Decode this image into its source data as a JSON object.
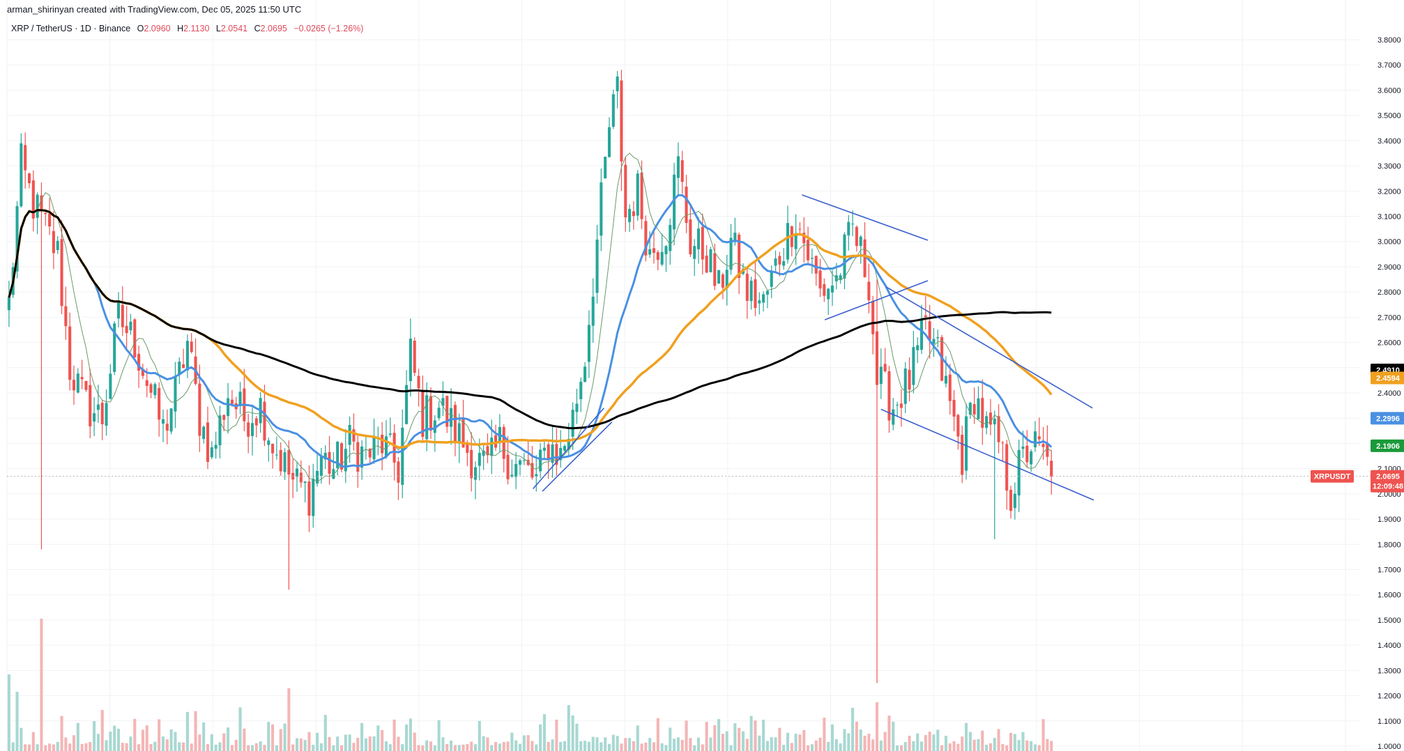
{
  "attribution": "arman_shirinyan created with TradingView.com, Dec 05, 2025 11:50 UTC",
  "legend": {
    "symbol": "XRP / TetherUS · 1D · Binance",
    "o_label": "O",
    "o_value": "2.0960",
    "h_label": "H",
    "h_value": "2.1130",
    "l_label": "L",
    "l_value": "2.0541",
    "c_label": "C",
    "c_value": "2.0695",
    "change": "−0.0265 (−1.26%)"
  },
  "colors": {
    "up": "#26a69a",
    "down": "#ef5350",
    "sma_fast": "#4a90e2",
    "sma_mid": "#f0a020",
    "sma_slow": "#000000",
    "sma_thin": "#6a9a6a",
    "trendline": "#3a5fcd",
    "volume_up": "#a8d8d2",
    "volume_down": "#f4b5b5"
  },
  "chart_data": {
    "type": "candlestick",
    "ylim": [
      1.0,
      3.85
    ],
    "y_ticks": [
      "3.8000",
      "3.7000",
      "3.6000",
      "3.5000",
      "3.4000",
      "3.3000",
      "3.2000",
      "3.1000",
      "3.0000",
      "2.9000",
      "2.8000",
      "2.7000",
      "2.6000",
      "2.5000",
      "2.4000",
      "2.3000",
      "2.2000",
      "2.1000",
      "2.0000",
      "1.9000",
      "1.8000",
      "1.7000",
      "1.6000",
      "1.5000",
      "1.4000",
      "1.3000",
      "1.2000",
      "1.1000",
      "1.0000"
    ],
    "y_tick_values": [
      3.8,
      3.7,
      3.6,
      3.5,
      3.4,
      3.3,
      3.2,
      3.1,
      3.0,
      2.9,
      2.8,
      2.7,
      2.6,
      2.5,
      2.4,
      2.3,
      2.2,
      2.1,
      2.0,
      1.9,
      1.8,
      1.7,
      1.6,
      1.5,
      1.4,
      1.3,
      1.2,
      1.1,
      1.0
    ],
    "close_anchors": [
      [
        0,
        2.75
      ],
      [
        3,
        3.3
      ],
      [
        6,
        3.15
      ],
      [
        9,
        3.05
      ],
      [
        12,
        2.95
      ],
      [
        15,
        2.5
      ],
      [
        19,
        2.35
      ],
      [
        23,
        2.3
      ],
      [
        27,
        2.7
      ],
      [
        31,
        2.6
      ],
      [
        35,
        2.4
      ],
      [
        38,
        2.25
      ],
      [
        41,
        2.4
      ],
      [
        44,
        2.6
      ],
      [
        47,
        2.3
      ],
      [
        50,
        2.15
      ],
      [
        54,
        2.4
      ],
      [
        58,
        2.3
      ],
      [
        62,
        2.35
      ],
      [
        65,
        2.2
      ],
      [
        70,
        2.05
      ],
      [
        74,
        2.0
      ],
      [
        77,
        2.15
      ],
      [
        80,
        2.1
      ],
      [
        84,
        2.2
      ],
      [
        88,
        2.15
      ],
      [
        92,
        2.2
      ],
      [
        96,
        2.1
      ],
      [
        99,
        2.55
      ],
      [
        102,
        2.3
      ],
      [
        106,
        2.35
      ],
      [
        110,
        2.25
      ],
      [
        114,
        2.15
      ],
      [
        118,
        2.1
      ],
      [
        121,
        2.2
      ],
      [
        124,
        2.12
      ],
      [
        127,
        2.1
      ],
      [
        130,
        2.05
      ],
      [
        133,
        2.2
      ],
      [
        136,
        2.15
      ],
      [
        139,
        2.3
      ],
      [
        142,
        2.55
      ],
      [
        145,
        3.0
      ],
      [
        148,
        3.45
      ],
      [
        150,
        3.6
      ],
      [
        152,
        3.1
      ],
      [
        155,
        3.2
      ],
      [
        158,
        2.95
      ],
      [
        162,
        3.05
      ],
      [
        165,
        3.3
      ],
      [
        168,
        3.0
      ],
      [
        172,
        2.95
      ],
      [
        175,
        2.8
      ],
      [
        178,
        3.0
      ],
      [
        182,
        2.8
      ],
      [
        186,
        2.75
      ],
      [
        190,
        2.95
      ],
      [
        194,
        3.1
      ],
      [
        197,
        2.95
      ],
      [
        200,
        2.8
      ],
      [
        204,
        2.85
      ],
      [
        208,
        3.05
      ],
      [
        212,
        2.85
      ],
      [
        214,
        2.45
      ],
      [
        218,
        2.35
      ],
      [
        222,
        2.45
      ],
      [
        226,
        2.65
      ],
      [
        229,
        2.55
      ],
      [
        232,
        2.35
      ],
      [
        235,
        2.15
      ],
      [
        238,
        2.4
      ],
      [
        241,
        2.25
      ],
      [
        244,
        2.2
      ],
      [
        247,
        2.0
      ],
      [
        249,
        2.1
      ],
      [
        252,
        2.2
      ],
      [
        255,
        2.15
      ],
      [
        257,
        2.07
      ]
    ],
    "wick_events": [
      {
        "i": 8,
        "low": 1.78,
        "high": 3.0
      },
      {
        "i": 214,
        "low": 1.25,
        "high": 2.85
      },
      {
        "i": 69,
        "low": 1.62,
        "high": 2.2
      },
      {
        "i": 243,
        "low": 1.82,
        "high": 2.1
      },
      {
        "i": 151,
        "low": 3.2,
        "high": 3.66
      }
    ],
    "series": [
      {
        "label": "2.4910",
        "value": 2.491,
        "badge": "#000000"
      },
      {
        "label": "2.4594",
        "value": 2.4594,
        "badge": "#f0a020"
      },
      {
        "label": "2.2996",
        "value": 2.2996,
        "badge": "#4a90e2"
      },
      {
        "label": "2.1906",
        "value": 2.1906,
        "badge": "#1a9a3a"
      }
    ],
    "last_price": {
      "symbol": "XRPUSDT",
      "value_label": "2.0695",
      "value": 2.0695,
      "countdown": "12:09:48",
      "color": "#ef5350"
    },
    "trendlines": [
      {
        "a": [
          0.594,
          3.185
        ],
        "b": [
          0.688,
          3.005
        ]
      },
      {
        "a": [
          0.611,
          2.69
        ],
        "b": [
          0.688,
          2.845
        ]
      },
      {
        "a": [
          0.657,
          2.82
        ],
        "b": [
          0.811,
          2.34
        ]
      },
      {
        "a": [
          0.653,
          2.335
        ],
        "b": [
          0.812,
          1.975
        ]
      },
      {
        "a": [
          0.393,
          2.02
        ],
        "b": [
          0.446,
          2.34
        ]
      },
      {
        "a": [
          0.4,
          2.01
        ],
        "b": [
          0.452,
          2.285
        ]
      }
    ]
  }
}
